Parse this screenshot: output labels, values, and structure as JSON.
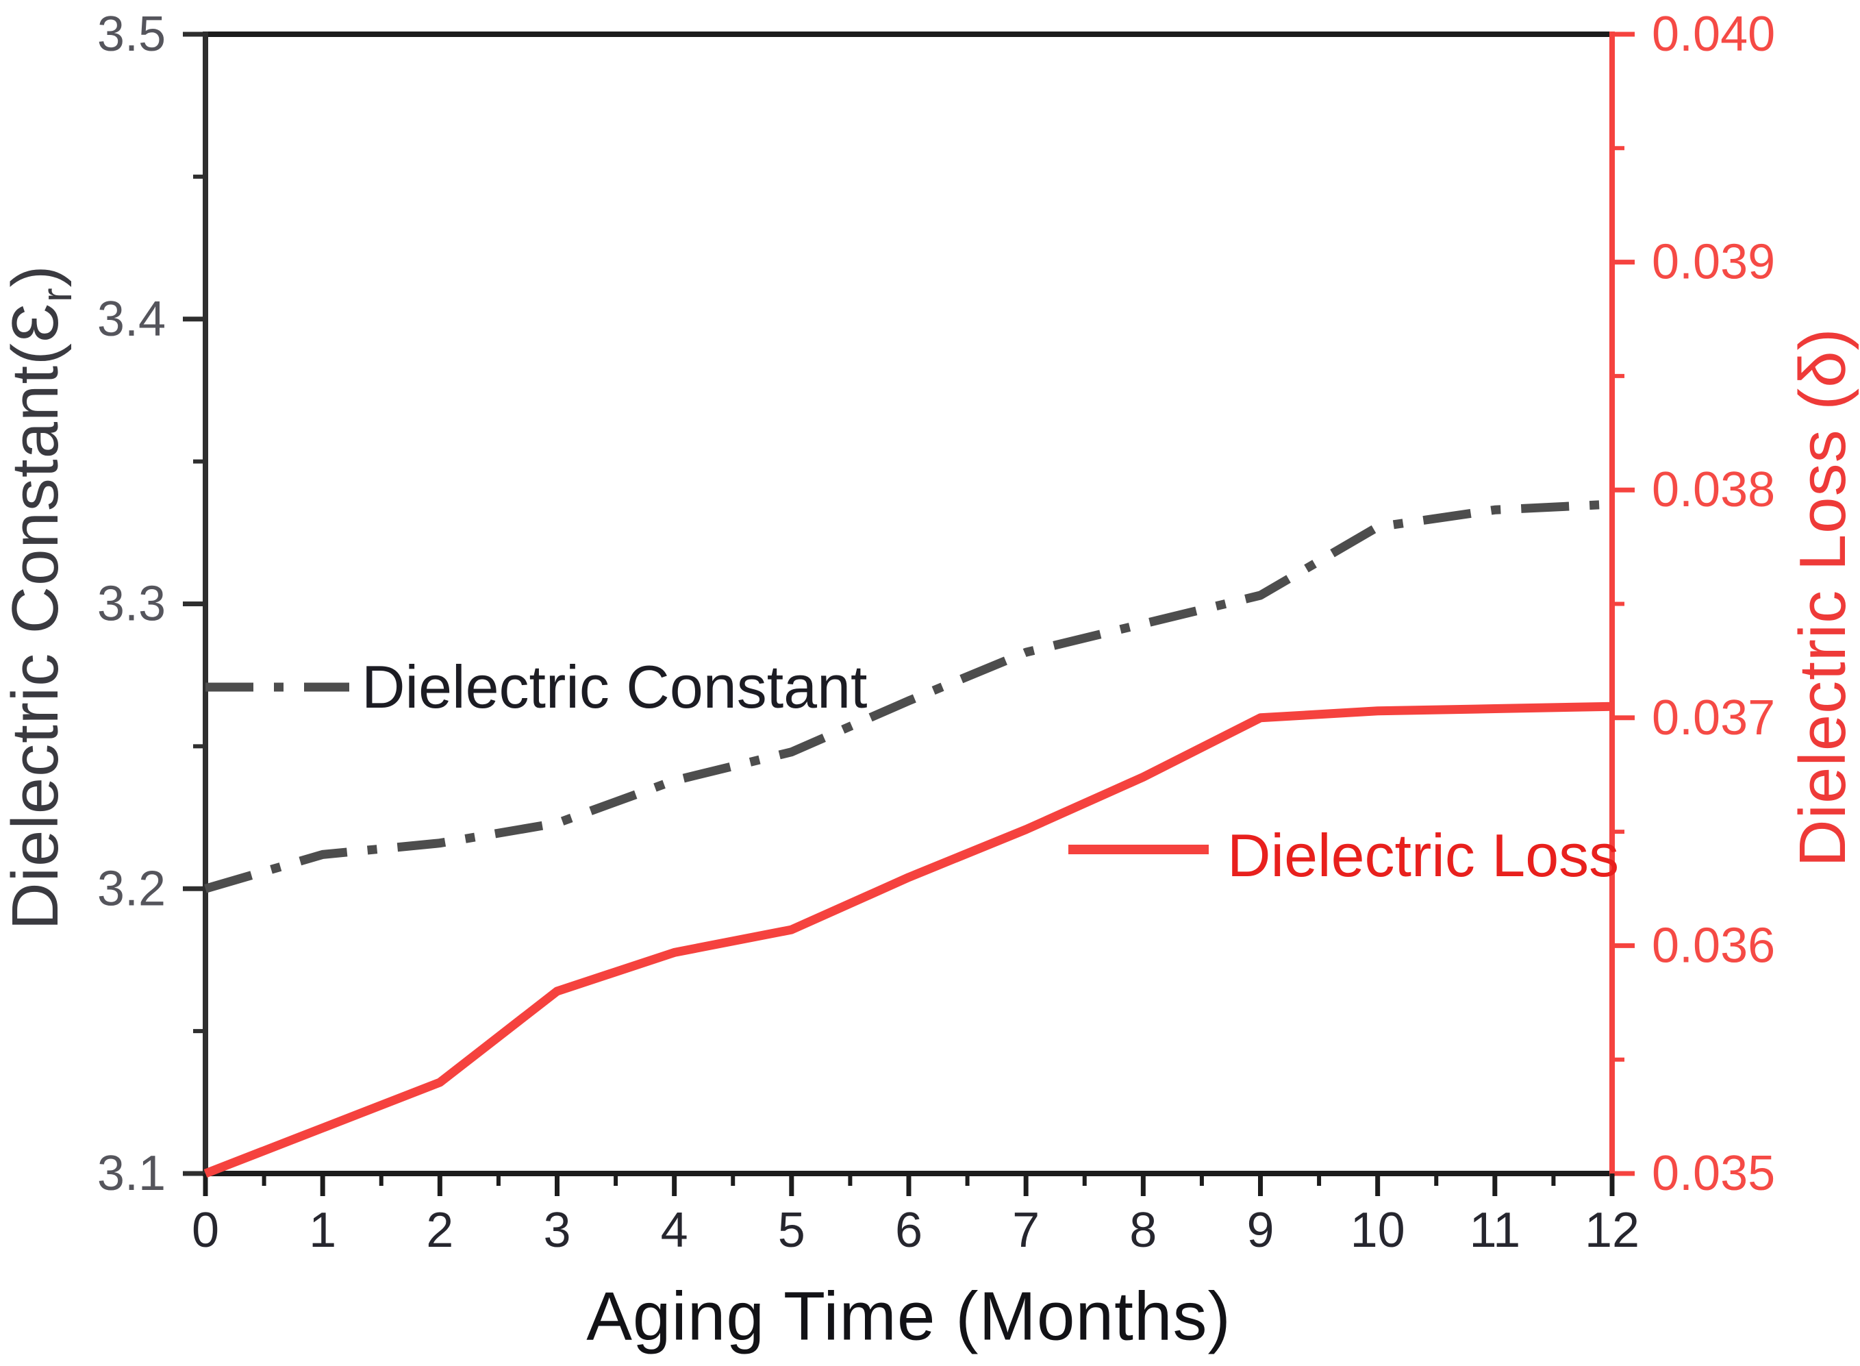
{
  "chart_data": {
    "type": "line",
    "title": "",
    "xlabel": "Aging Time (Months)",
    "xlim": [
      0,
      12
    ],
    "x": [
      0,
      1,
      2,
      3,
      4,
      5,
      6,
      7,
      8,
      9,
      10,
      11,
      12
    ],
    "x_tick_labels": [
      "0",
      "1",
      "2",
      "3",
      "4",
      "5",
      "6",
      "7",
      "8",
      "9",
      "10",
      "11",
      "12"
    ],
    "x_minor_ticks": [
      0.5,
      1.5,
      2.5,
      3.5,
      4.5,
      5.5,
      6.5,
      7.5,
      8.5,
      9.5,
      10.5,
      11.5
    ],
    "grid": "off",
    "left_axis": {
      "title_prefix": "Dielectric Constant(Ɛ",
      "title_sub": "r",
      "title_suffix": ")",
      "lim": [
        3.1,
        3.5
      ],
      "major_ticks": [
        3.1,
        3.2,
        3.3,
        3.4,
        3.5
      ],
      "tick_labels": [
        "3.1",
        "3.2",
        "3.3",
        "3.4",
        "3.5"
      ],
      "minor_ticks": [
        3.15,
        3.25,
        3.35,
        3.45
      ],
      "axis_color": "#2e2e2e",
      "tick_label_color": "#55555c"
    },
    "right_axis": {
      "title": "Dielectric Loss (δ)",
      "lim": [
        0.035,
        0.04
      ],
      "major_ticks": [
        0.035,
        0.036,
        0.037,
        0.038,
        0.039,
        0.04
      ],
      "tick_labels": [
        "0.035",
        "0.036",
        "0.037",
        "0.038",
        "0.039",
        "0.040"
      ],
      "minor_ticks": [
        0.0355,
        0.0365,
        0.0375,
        0.0385,
        0.0395
      ],
      "axis_color": "#f5433f",
      "tick_label_color": "#f54a45"
    },
    "x_axis_color": "#1c1c1c",
    "x_tick_label_color": "#26262e",
    "series": [
      {
        "name": "Dielectric Constant",
        "axis": "left",
        "color": "#4d4d4d",
        "line_style": "dash-dot",
        "values": [
          3.2,
          3.212,
          3.216,
          3.223,
          3.238,
          3.248,
          3.266,
          3.283,
          3.293,
          3.303,
          3.327,
          3.333,
          3.335
        ]
      },
      {
        "name": "Dielectric Loss",
        "axis": "right",
        "color": "#f5423e",
        "line_style": "solid",
        "values": [
          0.035,
          0.0352,
          0.0354,
          0.0358,
          0.03597,
          0.03607,
          0.0363,
          0.03651,
          0.03674,
          0.037,
          0.03703,
          0.03704,
          0.03705
        ]
      }
    ],
    "legend": [
      {
        "label": "Dielectric Constant",
        "text_color": "#1c1c23"
      },
      {
        "label": "Dielectric Loss",
        "text_color": "#e8201d"
      }
    ]
  }
}
